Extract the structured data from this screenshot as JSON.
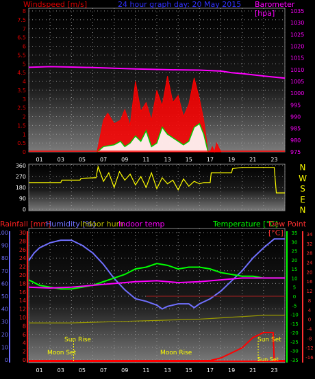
{
  "header": {
    "left_title": "Windspeed [m/s]",
    "center_title": "24 hour graph day:  20 May 2015",
    "right_title": "Barometer [hpa]"
  },
  "colors": {
    "windspeed": "#ff0000",
    "gust_fill": "#ff0000",
    "wind_avg": "#00cc00",
    "wind_fill": "#ffffff",
    "barometer": "#ff00ff",
    "direction": "#ffff00",
    "rainfall": "#ff0000",
    "humidity": "#7070ff",
    "indoor_hum": "#999900",
    "indoor_temp": "#ff00ff",
    "temperature": "#00ff00",
    "dew_point": "#ff2020"
  },
  "direction_labels": [
    "N",
    "W",
    "S",
    "E",
    "N"
  ],
  "bottom_header": {
    "rainfall": "Rainfall [mm]",
    "humidity": "Humidity [%]",
    "indoor_hum": "Indoor hum",
    "indoor_temp": "Indoor temp",
    "temperature": "Temperature [°C]",
    "dew_point": "Dew Point [°C]"
  },
  "events": {
    "sun_rise": "Sun Rise",
    "sun_set": "Sun Set",
    "moon_set": "Moon Set",
    "moon_rise": "Moon Rise",
    "sun_set_2": "Sun Set"
  },
  "chart_data": [
    {
      "type": "line",
      "name": "wind_barometer",
      "x_ticks": [
        "01",
        "03",
        "05",
        "07",
        "09",
        "11",
        "13",
        "15",
        "17",
        "19",
        "21",
        "23"
      ],
      "y_left_ticks": [
        "0",
        "0.5",
        "1",
        "1.5",
        "2",
        "2.5",
        "3",
        "3.5",
        "4",
        "4.5",
        "5",
        "5.5",
        "6",
        "6.5",
        "7",
        "7.5",
        "8"
      ],
      "y_right_ticks": [
        "975",
        "980",
        "985",
        "990",
        "995",
        "1000",
        "1005",
        "1010",
        "1015",
        "1020",
        "1025",
        "1030",
        "1035"
      ],
      "ylim_left": [
        0,
        8
      ],
      "ylim_right": [
        975,
        1035
      ],
      "grid": true,
      "series": [
        {
          "key": "barometer",
          "axis": "right",
          "hours": [
            0,
            2,
            4,
            6,
            8,
            10,
            12,
            14,
            16,
            18,
            19,
            20,
            22,
            24
          ],
          "values": [
            1011,
            1011.3,
            1011.1,
            1010.9,
            1010.6,
            1010.3,
            1010.1,
            1009.9,
            1009.8,
            1009.4,
            1008.7,
            1008.3,
            1007.3,
            1006.4
          ]
        },
        {
          "key": "gust",
          "axis": "left",
          "hours": [
            6.4,
            7,
            7.4,
            8,
            8.6,
            9,
            9.5,
            10,
            10.5,
            11,
            11.5,
            12,
            12.5,
            13,
            13.5,
            14,
            14.5,
            15,
            15.5,
            16,
            16.4,
            16.8,
            17,
            17.2,
            17.4,
            17.6,
            18
          ],
          "values": [
            0,
            1.8,
            2.2,
            1.6,
            1.8,
            2.4,
            1.5,
            4,
            2.3,
            2.8,
            1.8,
            3.5,
            2.6,
            4.3,
            2.8,
            3.2,
            2,
            2.7,
            4.2,
            3,
            1.8,
            0,
            0,
            0.3,
            0,
            0.5,
            0
          ]
        },
        {
          "key": "wind_avg",
          "axis": "left",
          "hours": [
            6.4,
            7,
            8,
            8.6,
            9,
            9.5,
            10,
            10.5,
            11,
            11.5,
            12,
            12.5,
            13,
            13.5,
            14,
            14.5,
            15,
            15.5,
            16,
            16.4,
            16.8
          ],
          "values": [
            0,
            0.3,
            0.4,
            0.6,
            0.3,
            0.5,
            0.9,
            0.6,
            1.2,
            0.3,
            0.5,
            1.4,
            1.0,
            0.8,
            0.6,
            0.4,
            0.6,
            1.4,
            1.6,
            1.0,
            0
          ]
        }
      ]
    },
    {
      "type": "scatter",
      "name": "wind_direction",
      "y_ticks": [
        "0",
        "90",
        "180",
        "270",
        "360"
      ],
      "ylim": [
        0,
        360
      ],
      "grid": true,
      "series": [
        {
          "key": "direction",
          "hours": [
            0,
            3,
            3.1,
            4.8,
            4.9,
            6.3,
            6.5,
            7,
            7.5,
            8,
            8.5,
            9,
            9.5,
            10,
            10.5,
            11,
            11.5,
            12,
            12.5,
            13,
            13.5,
            14,
            14.5,
            15,
            15.5,
            16,
            16.4,
            17,
            17.1,
            18,
            18.1,
            19,
            19.1,
            20,
            23,
            23.2,
            24
          ],
          "values": [
            220,
            220,
            240,
            240,
            255,
            260,
            350,
            230,
            300,
            180,
            310,
            240,
            290,
            200,
            270,
            180,
            300,
            170,
            260,
            210,
            240,
            160,
            250,
            190,
            230,
            210,
            220,
            220,
            300,
            300,
            300,
            300,
            335,
            345,
            345,
            135,
            135
          ]
        }
      ]
    },
    {
      "type": "line",
      "name": "temperature_humidity_rain",
      "x_ticks": [
        "01",
        "03",
        "05",
        "07",
        "09",
        "11",
        "13",
        "15",
        "17",
        "19",
        "21",
        "23"
      ],
      "y_humidity_ticks": [
        "0",
        "10",
        "20",
        "30",
        "40",
        "50",
        "60",
        "70",
        "80",
        "90",
        "100"
      ],
      "y_rain_ticks": [
        "0",
        "2",
        "4",
        "6",
        "8",
        "10",
        "12",
        "14",
        "16",
        "18",
        "20",
        "22",
        "24",
        "26",
        "28",
        "30"
      ],
      "y_temp_ticks": [
        "-35",
        "-30",
        "-25",
        "-20",
        "-15",
        "-10",
        "-5",
        "0",
        "5",
        "10",
        "15",
        "20",
        "25",
        "30",
        "35"
      ],
      "y_dew_ticks": [
        "-16",
        "-12",
        "-8",
        "-4",
        "0",
        "4",
        "8",
        "12",
        "16",
        "20",
        "24",
        "28",
        "32",
        "34"
      ],
      "ylim_humidity": [
        0,
        100
      ],
      "ylim_temp": [
        -35,
        35
      ],
      "grid": true,
      "series": [
        {
          "key": "humidity",
          "unit": "%",
          "hours": [
            0,
            0.5,
            1,
            2,
            3,
            4,
            5,
            6,
            7,
            8,
            9,
            10,
            11,
            12,
            12.5,
            13,
            14,
            15,
            15.5,
            16,
            17,
            18,
            19,
            20,
            21,
            22,
            23,
            24
          ],
          "values": [
            78,
            84,
            88,
            92,
            94,
            94,
            90,
            84,
            75,
            64,
            55,
            48,
            46,
            43,
            40,
            42,
            44,
            44,
            41,
            44,
            48,
            54,
            62,
            70,
            80,
            88,
            95,
            95
          ]
        },
        {
          "key": "temperature",
          "unit": "°C",
          "hours": [
            0,
            1,
            2,
            3,
            4,
            5,
            6,
            7,
            8,
            9,
            10,
            11,
            12,
            13,
            14,
            15,
            16,
            17,
            18,
            19,
            20,
            21,
            22,
            23,
            24
          ],
          "values": [
            9,
            6,
            5,
            4,
            4,
            5,
            6,
            8,
            10,
            12,
            15,
            16,
            18,
            17,
            15,
            16,
            16,
            15,
            13,
            12,
            11,
            11,
            10,
            10,
            10
          ]
        },
        {
          "key": "indoor_temp",
          "unit": "°C",
          "hours": [
            0,
            2,
            4,
            6,
            8,
            10,
            12,
            14,
            16,
            18,
            20,
            22,
            24
          ],
          "values": [
            5,
            4.5,
            5,
            6,
            7,
            8,
            8.5,
            7.5,
            8,
            9,
            10,
            10,
            10
          ]
        },
        {
          "key": "indoor_hum",
          "unit": "%",
          "hours": [
            0,
            4,
            8,
            12,
            16,
            20,
            22,
            24
          ],
          "values": [
            29,
            29,
            30,
            31,
            32,
            34,
            35,
            35
          ]
        },
        {
          "key": "rainfall",
          "unit": "mm",
          "hours": [
            0,
            16,
            17,
            18,
            19,
            20,
            21,
            22,
            22.9,
            23,
            24
          ],
          "values": [
            0,
            0,
            0,
            0.1,
            0.3,
            0.5,
            0.9,
            1.1,
            1.1,
            0,
            0
          ]
        }
      ]
    }
  ]
}
